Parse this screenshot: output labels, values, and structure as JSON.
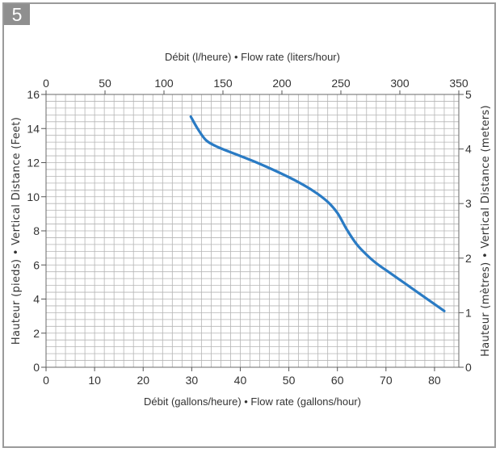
{
  "badge": {
    "label": "5"
  },
  "chart_data": {
    "type": "line",
    "title": "",
    "xlabel_bottom": "Débit (gallons/heure) • Flow rate (gallons/hour)",
    "xlabel_top": "Débit (l/heure) • Flow rate (liters/hour)",
    "ylabel_left": "Hauteur (pieds) • Vertical Distance (Feet)",
    "ylabel_right": "Hauteur (mètres) • Vertical Distance (meters)",
    "xlim": [
      0,
      85
    ],
    "ylim": [
      0,
      16
    ],
    "xlim_top": [
      0,
      350
    ],
    "ylim_right": [
      0,
      5
    ],
    "x_ticks_bottom": [
      0,
      10,
      20,
      30,
      40,
      50,
      60,
      70,
      80
    ],
    "x_ticks_top": [
      0,
      50,
      100,
      150,
      200,
      250,
      300,
      350
    ],
    "y_ticks_left": [
      0,
      2,
      4,
      6,
      8,
      10,
      12,
      14,
      16
    ],
    "y_ticks_right": [
      0,
      1,
      2,
      3,
      4,
      5
    ],
    "grid": true,
    "line_color": "#2a7bc4",
    "series": [
      {
        "x": [
          29.8,
          31.2,
          33.0,
          35.5,
          39.0,
          43.0,
          47.0,
          51.0,
          55.0,
          58.0,
          60.0,
          62.0,
          64.0,
          66.0,
          68.0,
          71.0,
          74.0,
          77.0,
          80.0,
          82.0
        ],
        "y": [
          14.7,
          14.0,
          13.3,
          12.9,
          12.5,
          12.05,
          11.55,
          11.0,
          10.35,
          9.7,
          9.05,
          8.05,
          7.2,
          6.6,
          6.1,
          5.5,
          4.9,
          4.3,
          3.7,
          3.3
        ]
      }
    ]
  }
}
